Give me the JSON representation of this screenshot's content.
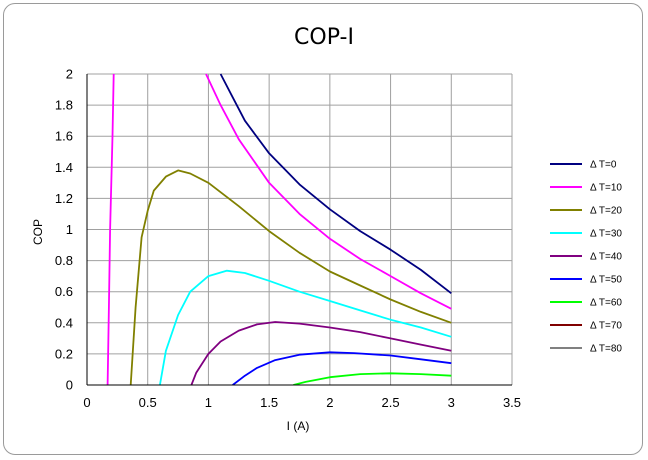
{
  "chart_data": {
    "type": "line",
    "title": "COP-I",
    "xlabel": "I (A)",
    "ylabel": "COP",
    "xlim": [
      0,
      3.5
    ],
    "ylim": [
      0,
      2
    ],
    "xticks": [
      0,
      0.5,
      1,
      1.5,
      2,
      2.5,
      3,
      3.5
    ],
    "xtick_labels": [
      "0",
      "0.5",
      "1",
      "1.5",
      "2",
      "2.5",
      "3",
      "3.5"
    ],
    "yticks": [
      0,
      0.2,
      0.4,
      0.6,
      0.8,
      1,
      1.2,
      1.4,
      1.6,
      1.8,
      2
    ],
    "ytick_labels": [
      "0",
      "0.2",
      "0.4",
      "0.6",
      "0.8",
      "1",
      "1.2",
      "1.4",
      "1.6",
      "1.8",
      "2"
    ],
    "grid": true,
    "legend_position": "right",
    "series": [
      {
        "name": "Δ T=0",
        "color": "#000080",
        "points": [
          [
            1.1,
            2.0
          ],
          [
            1.2,
            1.85
          ],
          [
            1.3,
            1.7
          ],
          [
            1.5,
            1.49
          ],
          [
            1.75,
            1.29
          ],
          [
            2.0,
            1.13
          ],
          [
            2.25,
            0.99
          ],
          [
            2.5,
            0.87
          ],
          [
            2.75,
            0.74
          ],
          [
            3.0,
            0.59
          ]
        ]
      },
      {
        "name": "Δ T=10",
        "color": "#ff00ff",
        "points": [
          [
            0.17,
            0.0
          ],
          [
            0.18,
            0.5
          ],
          [
            0.19,
            1.0
          ],
          [
            0.21,
            1.6
          ],
          [
            0.22,
            2.0
          ]
        ]
      },
      {
        "name": "Δ T=10",
        "color": "#ff00ff",
        "legend": false,
        "points": [
          [
            0.98,
            2.0
          ],
          [
            1.1,
            1.8
          ],
          [
            1.25,
            1.58
          ],
          [
            1.5,
            1.3
          ],
          [
            1.75,
            1.1
          ],
          [
            2.0,
            0.94
          ],
          [
            2.25,
            0.81
          ],
          [
            2.5,
            0.7
          ],
          [
            2.75,
            0.59
          ],
          [
            3.0,
            0.49
          ]
        ]
      },
      {
        "name": "Δ T=20",
        "color": "#808000",
        "points": [
          [
            0.36,
            0.0
          ],
          [
            0.4,
            0.5
          ],
          [
            0.45,
            0.95
          ],
          [
            0.5,
            1.12
          ],
          [
            0.55,
            1.25
          ],
          [
            0.65,
            1.34
          ],
          [
            0.75,
            1.38
          ],
          [
            0.85,
            1.36
          ],
          [
            1.0,
            1.3
          ],
          [
            1.25,
            1.15
          ],
          [
            1.5,
            0.99
          ],
          [
            1.75,
            0.85
          ],
          [
            2.0,
            0.73
          ],
          [
            2.25,
            0.64
          ],
          [
            2.5,
            0.55
          ],
          [
            2.75,
            0.47
          ],
          [
            3.0,
            0.4
          ]
        ]
      },
      {
        "name": "Δ T=30",
        "color": "#00ffff",
        "points": [
          [
            0.6,
            0.0
          ],
          [
            0.65,
            0.22
          ],
          [
            0.75,
            0.45
          ],
          [
            0.85,
            0.6
          ],
          [
            1.0,
            0.7
          ],
          [
            1.15,
            0.735
          ],
          [
            1.3,
            0.72
          ],
          [
            1.5,
            0.67
          ],
          [
            1.75,
            0.6
          ],
          [
            2.0,
            0.54
          ],
          [
            2.25,
            0.48
          ],
          [
            2.5,
            0.42
          ],
          [
            2.75,
            0.37
          ],
          [
            3.0,
            0.31
          ]
        ]
      },
      {
        "name": "Δ T=40",
        "color": "#800080",
        "points": [
          [
            0.86,
            0.0
          ],
          [
            0.9,
            0.08
          ],
          [
            1.0,
            0.2
          ],
          [
            1.1,
            0.28
          ],
          [
            1.25,
            0.35
          ],
          [
            1.4,
            0.39
          ],
          [
            1.55,
            0.405
          ],
          [
            1.75,
            0.395
          ],
          [
            2.0,
            0.37
          ],
          [
            2.25,
            0.34
          ],
          [
            2.5,
            0.3
          ],
          [
            2.75,
            0.26
          ],
          [
            3.0,
            0.22
          ]
        ]
      },
      {
        "name": "Δ T=50",
        "color": "#0000ff",
        "points": [
          [
            1.2,
            0.0
          ],
          [
            1.3,
            0.06
          ],
          [
            1.4,
            0.11
          ],
          [
            1.55,
            0.16
          ],
          [
            1.75,
            0.195
          ],
          [
            2.0,
            0.21
          ],
          [
            2.2,
            0.205
          ],
          [
            2.5,
            0.19
          ],
          [
            2.75,
            0.165
          ],
          [
            3.0,
            0.14
          ]
        ]
      },
      {
        "name": "Δ T=60",
        "color": "#00ff00",
        "points": [
          [
            1.7,
            0.0
          ],
          [
            1.8,
            0.02
          ],
          [
            2.0,
            0.05
          ],
          [
            2.25,
            0.07
          ],
          [
            2.5,
            0.075
          ],
          [
            2.75,
            0.07
          ],
          [
            3.0,
            0.06
          ]
        ]
      },
      {
        "name": "Δ T=70",
        "color": "#800000",
        "points": []
      },
      {
        "name": "Δ T=80",
        "color": "#808080",
        "points": []
      }
    ]
  }
}
